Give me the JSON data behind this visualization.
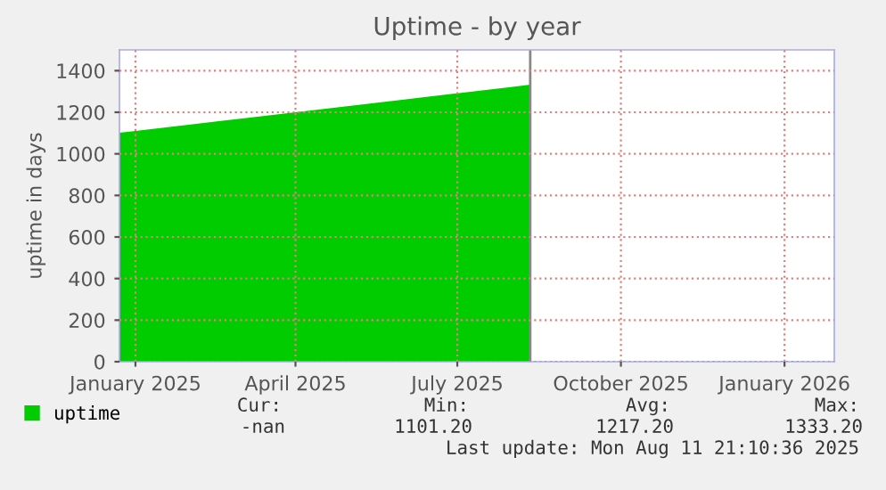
{
  "chart_data": {
    "type": "area",
    "title": "Uptime - by year",
    "ylabel": "uptime in days",
    "x": [
      "2024-12-23",
      "2025-01-01",
      "2025-02-01",
      "2025-03-01",
      "2025-04-01",
      "2025-05-01",
      "2025-06-01",
      "2025-07-01",
      "2025-08-01",
      "2025-08-11"
    ],
    "series": [
      {
        "name": "uptime",
        "color": "#00cc00",
        "values": [
          1101,
          1110,
          1141,
          1169,
          1200,
          1230,
          1261,
          1291,
          1322,
          1333
        ]
      }
    ],
    "xlim": [
      "2024-12-23",
      "2026-01-29"
    ],
    "xticks": [
      {
        "value": "2025-01-01",
        "label": "January 2025"
      },
      {
        "value": "2025-04-01",
        "label": "April 2025"
      },
      {
        "value": "2025-07-01",
        "label": "July 2025"
      },
      {
        "value": "2025-10-01",
        "label": "October 2025"
      },
      {
        "value": "2026-01-01",
        "label": "January 2026"
      }
    ],
    "ylim": [
      0,
      1500
    ],
    "yticks": [
      0,
      200,
      400,
      600,
      800,
      1000,
      1200,
      1400
    ],
    "ref_lines": [
      {
        "axis": "x",
        "value": "2025-08-11",
        "color": "#888888"
      }
    ],
    "grid": true,
    "legend": "bottom left",
    "annotations": [
      "Cur:",
      "Min:",
      "Avg:",
      "Max:",
      "-nan",
      "1101.20",
      "1217.20",
      "1333.20",
      "Last update: Mon Aug 11 21:10:36 2025"
    ]
  }
}
